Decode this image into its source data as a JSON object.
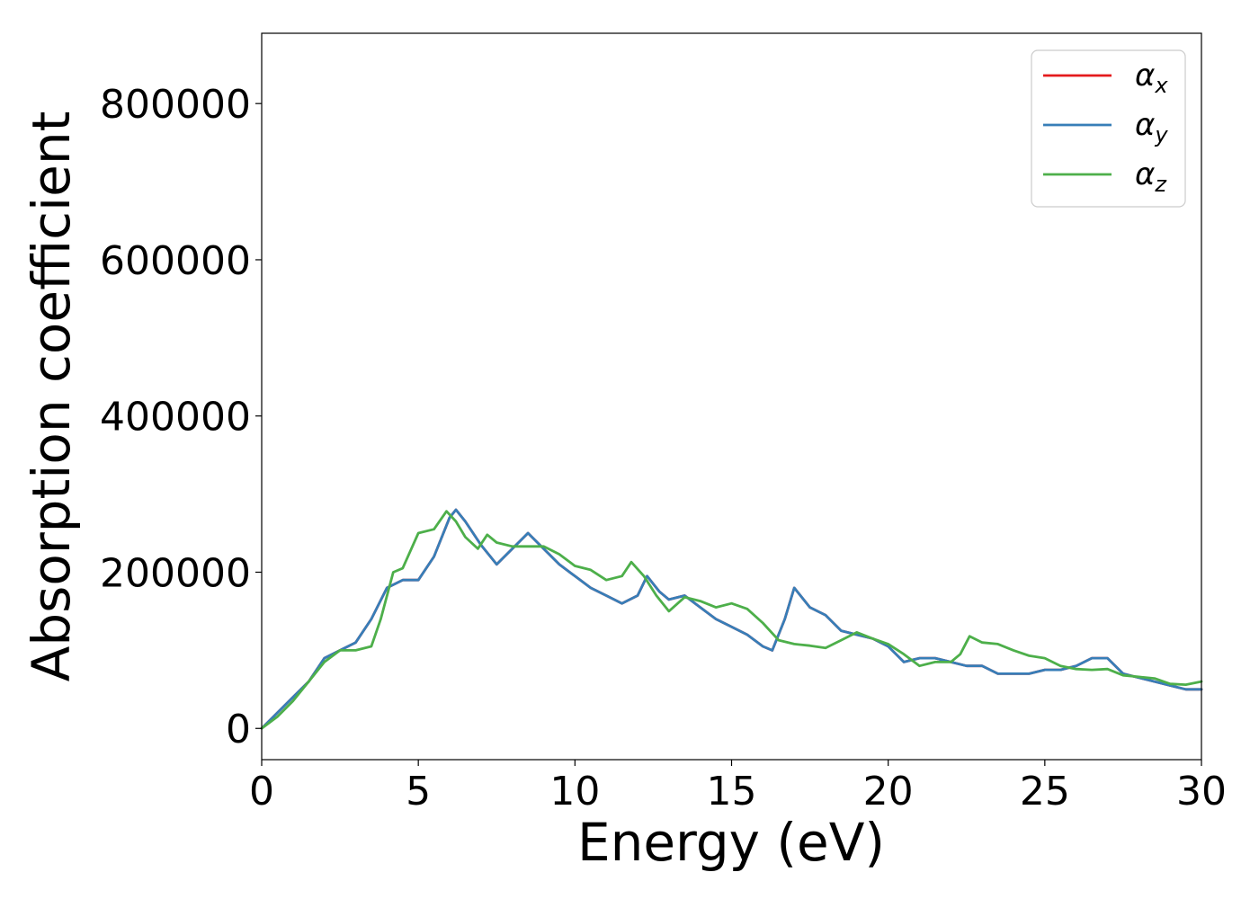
{
  "chart_data": {
    "type": "line",
    "xlabel": "Energy (eV)",
    "ylabel": "Absorption coefficient",
    "xlim": [
      0,
      30
    ],
    "ylim": [
      -40000,
      890000
    ],
    "xticks": [
      0,
      5,
      10,
      15,
      20,
      25,
      30
    ],
    "yticks": [
      0,
      200000,
      400000,
      600000,
      800000
    ],
    "grid": false,
    "legend_position": "top-right",
    "series": [
      {
        "name": "α",
        "subscript": "x",
        "color": "#e41a1c",
        "x": [
          0,
          0.5,
          1,
          1.5,
          2,
          2.5,
          3,
          3.5,
          4,
          4.5,
          5,
          5.5,
          6,
          6.2,
          6.5,
          7,
          7.5,
          8,
          8.5,
          9,
          9.5,
          10,
          10.5,
          11,
          11.5,
          12,
          12.3,
          12.7,
          13,
          13.5,
          14,
          14.5,
          15,
          15.5,
          16,
          16.3,
          16.7,
          17,
          17.5,
          18,
          18.5,
          19,
          19.5,
          20,
          20.5,
          21,
          21.5,
          22,
          22.5,
          23,
          23.5,
          24,
          24.5,
          25,
          25.5,
          26,
          26.5,
          27,
          27.5,
          28,
          28.5,
          29,
          29.5,
          30
        ],
        "y": [
          0,
          20000,
          40000,
          60000,
          90000,
          100000,
          110000,
          140000,
          180000,
          190000,
          190000,
          220000,
          270000,
          280000,
          265000,
          235000,
          210000,
          230000,
          250000,
          230000,
          210000,
          195000,
          180000,
          170000,
          160000,
          170000,
          195000,
          175000,
          165000,
          170000,
          155000,
          140000,
          130000,
          120000,
          105000,
          100000,
          140000,
          180000,
          155000,
          145000,
          125000,
          120000,
          115000,
          105000,
          85000,
          90000,
          90000,
          85000,
          80000,
          80000,
          70000,
          70000,
          70000,
          75000,
          75000,
          80000,
          90000,
          90000,
          70000,
          65000,
          60000,
          55000,
          50000,
          50000
        ]
      },
      {
        "name": "α",
        "subscript": "y",
        "color": "#377eb8",
        "x": [
          0,
          0.5,
          1,
          1.5,
          2,
          2.5,
          3,
          3.5,
          4,
          4.5,
          5,
          5.5,
          6,
          6.2,
          6.5,
          7,
          7.5,
          8,
          8.5,
          9,
          9.5,
          10,
          10.5,
          11,
          11.5,
          12,
          12.3,
          12.7,
          13,
          13.5,
          14,
          14.5,
          15,
          15.5,
          16,
          16.3,
          16.7,
          17,
          17.5,
          18,
          18.5,
          19,
          19.5,
          20,
          20.5,
          21,
          21.5,
          22,
          22.5,
          23,
          23.5,
          24,
          24.5,
          25,
          25.5,
          26,
          26.5,
          27,
          27.5,
          28,
          28.5,
          29,
          29.5,
          30
        ],
        "y": [
          0,
          20000,
          40000,
          60000,
          90000,
          100000,
          110000,
          140000,
          180000,
          190000,
          190000,
          220000,
          270000,
          280000,
          265000,
          235000,
          210000,
          230000,
          250000,
          230000,
          210000,
          195000,
          180000,
          170000,
          160000,
          170000,
          195000,
          175000,
          165000,
          170000,
          155000,
          140000,
          130000,
          120000,
          105000,
          100000,
          140000,
          180000,
          155000,
          145000,
          125000,
          120000,
          115000,
          105000,
          85000,
          90000,
          90000,
          85000,
          80000,
          80000,
          70000,
          70000,
          70000,
          75000,
          75000,
          80000,
          90000,
          90000,
          70000,
          65000,
          60000,
          55000,
          50000,
          50000
        ]
      },
      {
        "name": "α",
        "subscript": "z",
        "color": "#4daf4a",
        "x": [
          0,
          0.5,
          1,
          1.5,
          2,
          2.5,
          3,
          3.5,
          3.8,
          4.2,
          4.5,
          5,
          5.5,
          5.9,
          6.2,
          6.5,
          6.9,
          7.2,
          7.5,
          8,
          8.5,
          9,
          9.5,
          10,
          10.5,
          11,
          11.5,
          11.8,
          12.2,
          12.6,
          13,
          13.5,
          14,
          14.5,
          15,
          15.5,
          16,
          16.5,
          17,
          17.5,
          18,
          18.5,
          19,
          19.5,
          20,
          20.5,
          21,
          21.5,
          22,
          22.3,
          22.6,
          23,
          23.5,
          24,
          24.5,
          25,
          25.5,
          26,
          26.5,
          27,
          27.5,
          28,
          28.5,
          29,
          29.5,
          30
        ],
        "y": [
          0,
          15000,
          35000,
          60000,
          85000,
          100000,
          100000,
          105000,
          140000,
          200000,
          205000,
          250000,
          255000,
          278000,
          265000,
          245000,
          230000,
          248000,
          238000,
          233000,
          233000,
          233000,
          223000,
          208000,
          203000,
          190000,
          195000,
          213000,
          195000,
          170000,
          150000,
          168000,
          163000,
          155000,
          160000,
          153000,
          135000,
          113000,
          108000,
          106000,
          103000,
          113000,
          123000,
          115000,
          108000,
          95000,
          80000,
          85000,
          85000,
          95000,
          118000,
          110000,
          108000,
          100000,
          93000,
          90000,
          80000,
          76000,
          75000,
          76000,
          68000,
          66000,
          64000,
          57000,
          56000,
          60000
        ]
      }
    ]
  }
}
